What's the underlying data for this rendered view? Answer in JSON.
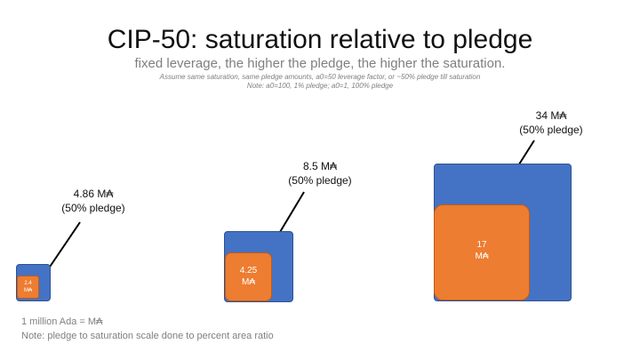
{
  "slide": {
    "title": "CIP-50: saturation relative to pledge",
    "subtitle": "fixed leverage, the higher the pledge, the higher the saturation.",
    "note_line_1": "Assume same saturation, same pledge amounts, a0=50 leverage factor, or ~50% pledge till saturation",
    "note_line_2": "Note: a0=100, 1% pledge; a0=1, 100% pledge"
  },
  "pools": [
    {
      "saturation": "4.86 M₳",
      "pledge_share": "(50% pledge)",
      "pledge_amount": "2.4",
      "unit": "M₳"
    },
    {
      "saturation": "8.5 M₳",
      "pledge_share": "(50% pledge)",
      "pledge_amount": "4.25",
      "unit": "M₳"
    },
    {
      "saturation": "34 M₳",
      "pledge_share": "(50% pledge)",
      "pledge_amount": "17",
      "unit": "M₳"
    }
  ],
  "footer": {
    "definition": "1 million Ada = M₳",
    "note": "Note: pledge to saturation scale done to percent area ratio"
  },
  "colors": {
    "saturation_box": "#4472c4",
    "pledge_box": "#ed7d31",
    "title_text": "#111111",
    "muted_text": "#7f7f7f"
  }
}
